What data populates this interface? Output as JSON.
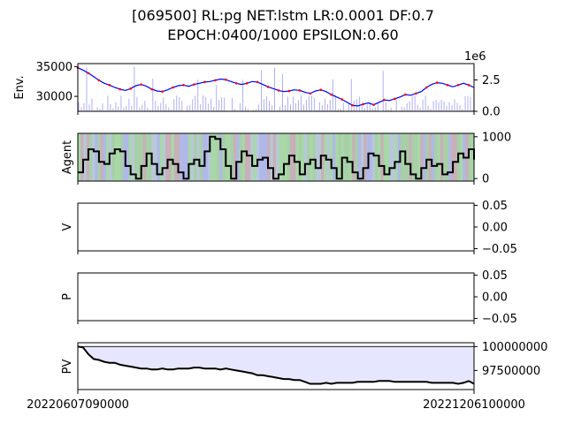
{
  "title_line1": "[069500] RL:pg NET:lstm LR:0.0001 DF:0.7",
  "title_line2": "EPOCH:0400/1000 EPSILON:0.60",
  "chart_data": [
    {
      "type": "line",
      "panel": "env",
      "ylabel": "Env.",
      "left_ticks": [
        "35000",
        "30000"
      ],
      "left_tick_values": [
        35000,
        30000
      ],
      "left_ylim": [
        27500,
        35500
      ],
      "right_ticks": [
        "2.5",
        "0.0"
      ],
      "right_tick_values": [
        2.5,
        0.0
      ],
      "right_multiplier": "1e6",
      "right_ylim": [
        0,
        3.8
      ],
      "price_series": [
        34800,
        34400,
        33900,
        33300,
        32700,
        32200,
        31900,
        31500,
        31200,
        31000,
        31300,
        31800,
        32000,
        31700,
        31200,
        30900,
        30800,
        31100,
        31500,
        31800,
        31900,
        31700,
        32000,
        32200,
        32400,
        32500,
        32700,
        32900,
        32800,
        32500,
        32200,
        32000,
        32200,
        32500,
        32400,
        32000,
        31600,
        31300,
        31000,
        30800,
        30900,
        31100,
        31000,
        30700,
        30500,
        30900,
        31100,
        30800,
        30300,
        29900,
        29500,
        29000,
        28500,
        28400,
        28700,
        28900,
        28600,
        29000,
        29400,
        29300,
        29600,
        29900,
        30300,
        30200,
        30500,
        30800,
        31500,
        32000,
        32300,
        32200,
        31900,
        31600,
        31900,
        32200,
        31900,
        31500
      ],
      "volume_max_millions": 3.7,
      "series_colors": {
        "price": "#0000ff",
        "buy": "#ff0000",
        "volume": "#b0b0f0"
      }
    },
    {
      "type": "line",
      "panel": "agent",
      "ylabel": "Agent",
      "right_ticks": [
        "1000",
        "0"
      ],
      "right_tick_values": [
        1000,
        0
      ],
      "ylim": [
        -60,
        1080
      ],
      "holdings": [
        150,
        450,
        700,
        650,
        400,
        350,
        600,
        700,
        650,
        300,
        100,
        0,
        300,
        600,
        350,
        100,
        250,
        450,
        350,
        150,
        0,
        350,
        450,
        300,
        650,
        1000,
        950,
        700,
        300,
        0,
        400,
        650,
        550,
        300,
        450,
        500,
        250,
        0,
        100,
        350,
        550,
        400,
        100,
        350,
        450,
        250,
        550,
        450,
        250,
        0,
        500,
        400,
        150,
        0,
        250,
        600,
        550,
        300,
        100,
        250,
        400,
        650,
        350,
        100,
        0,
        250,
        450,
        300,
        350,
        100,
        150,
        400,
        600,
        500,
        700,
        450
      ],
      "line_color": "#000000",
      "band_colors": [
        "#a8cfa8",
        "#b0b8e8",
        "#c8b0b8",
        "#a8d8a8",
        "#b8c8d8"
      ]
    },
    {
      "type": "line",
      "panel": "value",
      "ylabel": "V",
      "right_ticks": [
        "0.05",
        "0.00",
        "−0.05"
      ],
      "right_tick_values": [
        0.05,
        0.0,
        -0.05
      ],
      "ylim": [
        -0.055,
        0.055
      ],
      "values": []
    },
    {
      "type": "line",
      "panel": "policy",
      "ylabel": "P",
      "right_ticks": [
        "0.05",
        "0.00",
        "−0.05"
      ],
      "right_tick_values": [
        0.05,
        0.0,
        -0.05
      ],
      "ylim": [
        -0.055,
        0.055
      ],
      "values": []
    },
    {
      "type": "area",
      "panel": "portfolio",
      "ylabel": "PV",
      "right_ticks": [
        "100000000",
        "97500000"
      ],
      "right_tick_values": [
        100000000,
        97500000
      ],
      "ylim": [
        95500000,
        100400000
      ],
      "baseline": 100000000,
      "x_ticks": [
        "20220607090000",
        "20221206100000"
      ],
      "values": [
        100000000,
        99900000,
        99200000,
        98700000,
        98600000,
        98400000,
        98300000,
        98300000,
        98100000,
        98000000,
        97900000,
        97800000,
        97700000,
        97700000,
        97600000,
        97600000,
        97700000,
        97600000,
        97600000,
        97700000,
        97700000,
        97700000,
        97800000,
        97800000,
        97700000,
        97700000,
        97700000,
        97600000,
        97700000,
        97600000,
        97500000,
        97400000,
        97300000,
        97200000,
        97000000,
        97000000,
        96900000,
        96800000,
        96700000,
        96600000,
        96600000,
        96500000,
        96500000,
        96300000,
        96100000,
        96100000,
        96100000,
        96200000,
        96100000,
        96200000,
        96200000,
        96200000,
        96200000,
        96300000,
        96300000,
        96300000,
        96300000,
        96400000,
        96400000,
        96400000,
        96300000,
        96300000,
        96300000,
        96300000,
        96300000,
        96300000,
        96300000,
        96200000,
        96200000,
        96200000,
        96200000,
        96200000,
        96100000,
        96200000,
        96400000,
        96100000
      ],
      "line_color": "#000000",
      "fill_color": "#e6e6ff"
    }
  ]
}
